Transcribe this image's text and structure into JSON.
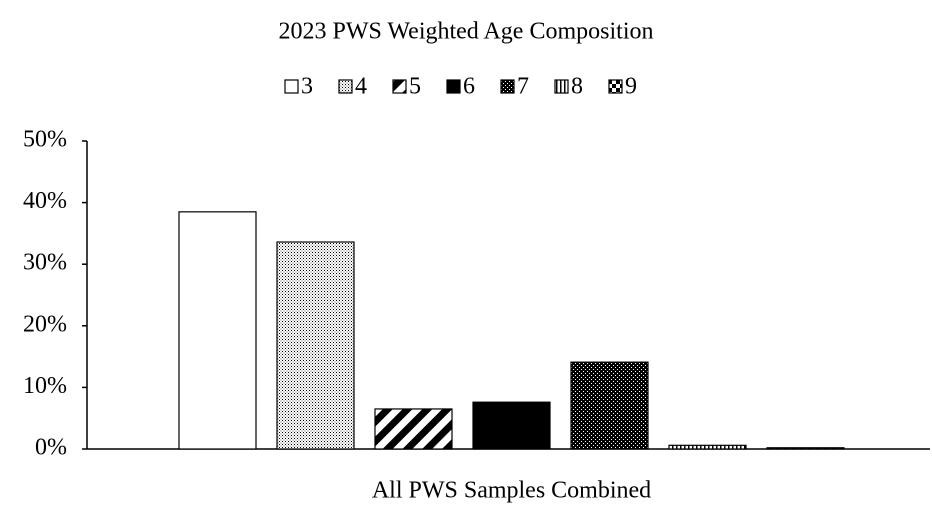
{
  "chart_data": {
    "type": "bar",
    "title": "2023 PWS Weighted Age Composition",
    "categories": [
      "All PWS Samples Combined"
    ],
    "series": [
      {
        "name": "3",
        "color": "#000000",
        "pattern": "white",
        "values": [
          38.5
        ]
      },
      {
        "name": "4",
        "color": "#000000",
        "pattern": "stipple",
        "values": [
          33.6
        ]
      },
      {
        "name": "5",
        "color": "#000000",
        "pattern": "diagonal",
        "values": [
          6.5
        ]
      },
      {
        "name": "6",
        "color": "#000000",
        "pattern": "solid",
        "values": [
          7.6
        ]
      },
      {
        "name": "7",
        "color": "#000000",
        "pattern": "dots",
        "values": [
          14.1
        ]
      },
      {
        "name": "8",
        "color": "#000000",
        "pattern": "vertical",
        "values": [
          0.6
        ]
      },
      {
        "name": "9",
        "color": "#000000",
        "pattern": "checker",
        "values": [
          0.2
        ]
      }
    ],
    "ylim": [
      0,
      50
    ],
    "yticks": [
      {
        "value": 0,
        "label": "0%"
      },
      {
        "value": 10,
        "label": "10%"
      },
      {
        "value": 20,
        "label": "20%"
      },
      {
        "value": 30,
        "label": "30%"
      },
      {
        "value": 40,
        "label": "40%"
      },
      {
        "value": 50,
        "label": "50%"
      }
    ],
    "legend": "top",
    "grid": false
  }
}
